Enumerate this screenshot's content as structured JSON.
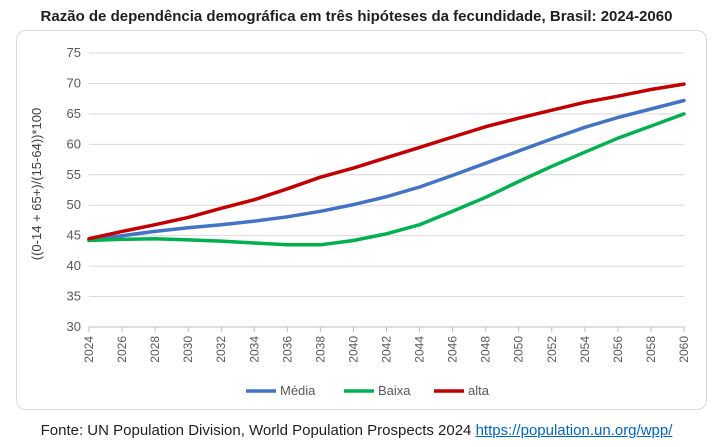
{
  "chart_data": {
    "type": "line",
    "title": "Razão de dependência demográfica em três hipóteses da fecundidade, Brasil: 2024-2060",
    "ylabel": "((0-14 + 65+)/(15-64))*100",
    "xlabel": "",
    "ylim": [
      30,
      75
    ],
    "yticks": [
      30,
      35,
      40,
      45,
      50,
      55,
      60,
      65,
      70,
      75
    ],
    "xticks": [
      2024,
      2026,
      2028,
      2030,
      2032,
      2034,
      2036,
      2038,
      2040,
      2042,
      2044,
      2046,
      2048,
      2050,
      2052,
      2054,
      2056,
      2058,
      2060
    ],
    "x": [
      2024,
      2026,
      2028,
      2030,
      2032,
      2034,
      2036,
      2038,
      2040,
      2042,
      2044,
      2046,
      2048,
      2050,
      2052,
      2054,
      2056,
      2058,
      2060
    ],
    "grid": true,
    "legend_position": "bottom",
    "series": [
      {
        "name": "Média",
        "color": "#4472c4",
        "values": [
          44.3,
          45.0,
          45.7,
          46.3,
          46.8,
          47.4,
          48.1,
          49.0,
          50.1,
          51.4,
          53.0,
          54.9,
          56.9,
          58.9,
          60.9,
          62.8,
          64.4,
          65.8,
          67.2
        ]
      },
      {
        "name": "Baixa",
        "color": "#00b050",
        "values": [
          44.2,
          44.4,
          44.5,
          44.3,
          44.1,
          43.8,
          43.5,
          43.5,
          44.2,
          45.3,
          46.8,
          49.0,
          51.3,
          53.9,
          56.4,
          58.7,
          61.0,
          63.0,
          65.0
        ]
      },
      {
        "name": "alta",
        "color": "#c00000",
        "values": [
          44.5,
          45.7,
          46.8,
          48.0,
          49.5,
          50.9,
          52.7,
          54.6,
          56.1,
          57.8,
          59.5,
          61.2,
          62.9,
          64.3,
          65.6,
          66.9,
          67.9,
          69.0,
          69.9
        ]
      }
    ]
  },
  "source": {
    "text": "Fonte: UN Population Division, World Population Prospects 2024 ",
    "link": "https://population.un.org/wpp/"
  }
}
